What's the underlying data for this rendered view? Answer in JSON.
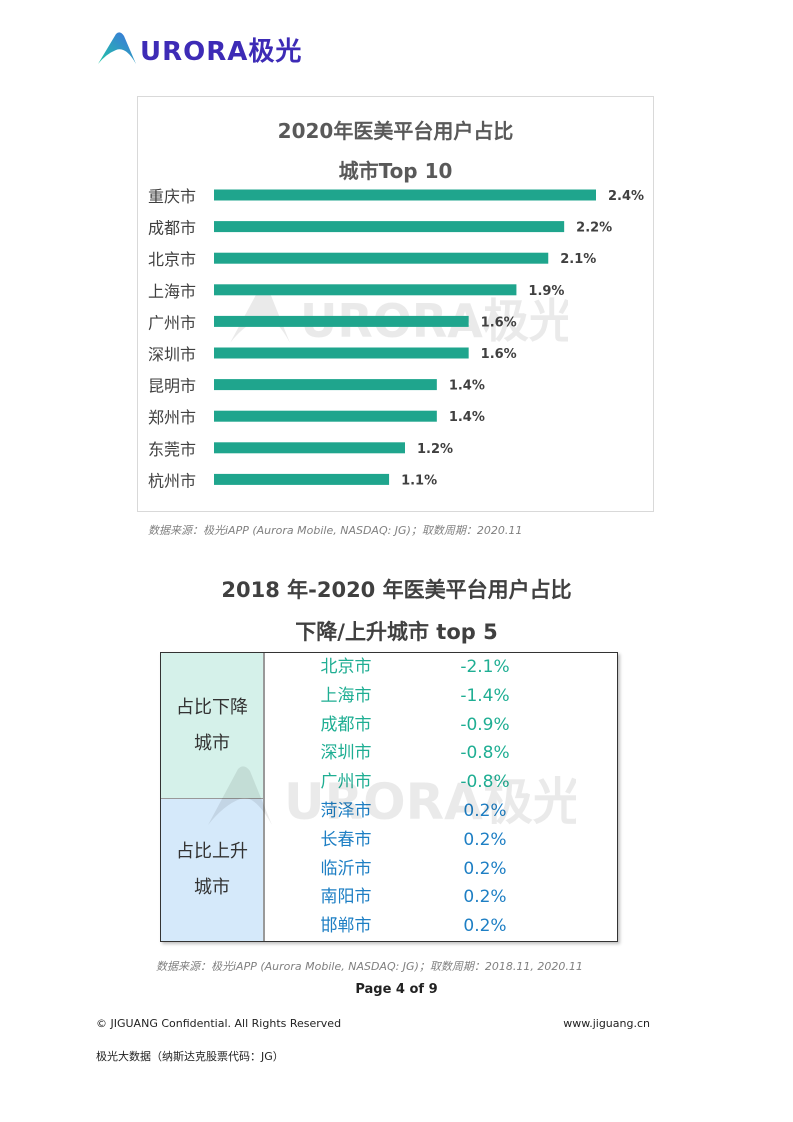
{
  "header": {
    "logo_text": "URORA极光"
  },
  "chart": {
    "title_line1": "2020年医美平台用户占比",
    "title_line2": "城市Top 10",
    "color": "#1fa58d"
  },
  "chart_data": {
    "type": "bar",
    "orientation": "horizontal",
    "title": "2020年医美平台用户占比 城市Top 10",
    "categories": [
      "重庆市",
      "成都市",
      "北京市",
      "上海市",
      "广州市",
      "深圳市",
      "昆明市",
      "郑州市",
      "东莞市",
      "杭州市"
    ],
    "values": [
      2.4,
      2.2,
      2.1,
      1.9,
      1.6,
      1.6,
      1.4,
      1.4,
      1.2,
      1.1
    ],
    "labels": [
      "2.4%",
      "2.2%",
      "2.1%",
      "1.9%",
      "1.6%",
      "1.6%",
      "1.4%",
      "1.4%",
      "1.2%",
      "1.1%"
    ],
    "xlim": [
      0,
      2.4
    ],
    "grid": false
  },
  "source1": "数据来源：极光iAPP (Aurora Mobile, NASDAQ: JG)；取数周期：2020.11",
  "section": {
    "title_line1": "2018 年-2020 年医美平台用户占比",
    "title_line2": "下降/上升城市 top 5"
  },
  "table": {
    "down_label_1": "占比下降",
    "down_label_2": "城市",
    "up_label_1": "占比上升",
    "up_label_2": "城市",
    "down": [
      {
        "city": "北京市",
        "value": "-2.1%"
      },
      {
        "city": "上海市",
        "value": "-1.4%"
      },
      {
        "city": "成都市",
        "value": "-0.9%"
      },
      {
        "city": "深圳市",
        "value": "-0.8%"
      },
      {
        "city": "广州市",
        "value": "-0.8%"
      }
    ],
    "up": [
      {
        "city": "菏泽市",
        "value": "0.2%"
      },
      {
        "city": "长春市",
        "value": "0.2%"
      },
      {
        "city": "临沂市",
        "value": "0.2%"
      },
      {
        "city": "南阳市",
        "value": "0.2%"
      },
      {
        "city": "邯郸市",
        "value": "0.2%"
      }
    ],
    "down_color": "#1fae93",
    "up_color": "#1e7fc4"
  },
  "source2": "数据来源：极光iAPP (Aurora Mobile, NASDAQ: JG)；取数周期：2018.11, 2020.11",
  "footer": {
    "page": "Page 4 of 9",
    "left": "© JIGUANG Confidential. All Rights Reserved",
    "right": "www.jiguang.cn",
    "bottom": "极光大数据（纳斯达克股票代码：JG）"
  },
  "watermark_text": "URORA极光"
}
